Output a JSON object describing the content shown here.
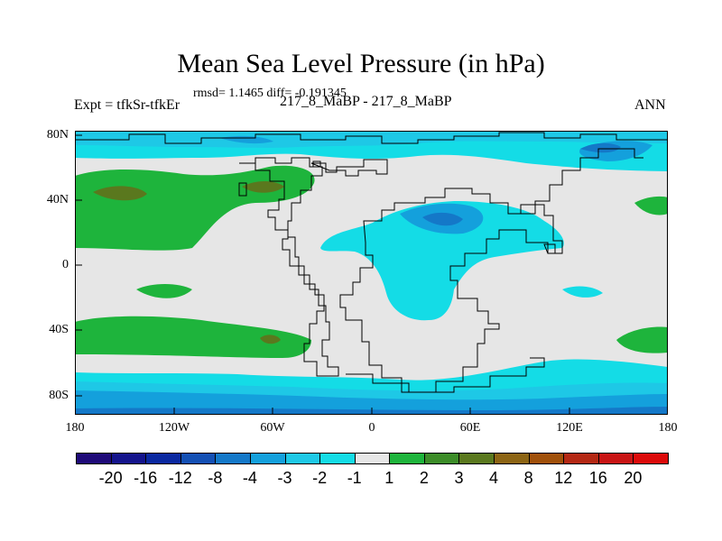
{
  "title": "Mean Sea Level Pressure (in hPa)",
  "stats": "rmsd= 1.1465 diff= -0.191345",
  "left_label": "Expt = tfkSr-tfkEr",
  "center_label": "217_8_MaBP - 217_8_MaBP",
  "right_label": "ANN",
  "lat_ticks": [
    "80N",
    "40N",
    "0",
    "40S",
    "80S"
  ],
  "lon_ticks": [
    "180",
    "120W",
    "60W",
    "0",
    "60E",
    "120E",
    "180"
  ],
  "colorbar": {
    "labels": [
      "-20",
      "-16",
      "-12",
      "-8",
      "-4",
      "-3",
      "-2",
      "-1",
      "1",
      "2",
      "3",
      "4",
      "8",
      "12",
      "16",
      "20"
    ],
    "colors": [
      "#1e0a78",
      "#14148c",
      "#0a28a0",
      "#1450b4",
      "#1478c8",
      "#14a0dc",
      "#1ec8e6",
      "#14dce6",
      "#e6e6e6",
      "#1eb43c",
      "#3c8c28",
      "#5a781e",
      "#8c6414",
      "#a0500a",
      "#b42814",
      "#c81414",
      "#dc0a0a"
    ]
  },
  "palette": {
    "neutral": "#e6e6e6",
    "light_cyan": "#14dce6",
    "cyan": "#1ec8e6",
    "blue": "#14a0dc",
    "mid_blue": "#1478c8",
    "green": "#1eb43c",
    "dark_green": "#5a781e"
  }
}
